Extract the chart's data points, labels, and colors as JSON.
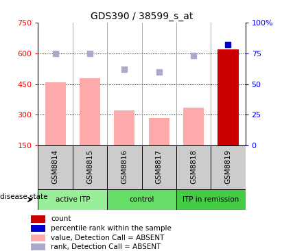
{
  "title": "GDS390 / 38599_s_at",
  "samples": [
    "GSM8814",
    "GSM8815",
    "GSM8816",
    "GSM8817",
    "GSM8818",
    "GSM8819"
  ],
  "bar_values": [
    460,
    480,
    320,
    285,
    335,
    620
  ],
  "rank_values": [
    75,
    75,
    62,
    60,
    73,
    82
  ],
  "bar_colors": [
    "#ffaaaa",
    "#ffaaaa",
    "#ffaaaa",
    "#ffaaaa",
    "#ffaaaa",
    "#cc0000"
  ],
  "rank_colors": [
    "#aaaacc",
    "#aaaacc",
    "#aaaacc",
    "#aaaacc",
    "#aaaacc",
    "#0000cc"
  ],
  "ylim_left": [
    150,
    750
  ],
  "ylim_right": [
    0,
    100
  ],
  "yticks_left": [
    150,
    300,
    450,
    600,
    750
  ],
  "yticks_right": [
    0,
    25,
    50,
    75,
    100
  ],
  "yticklabels_right": [
    "0",
    "25",
    "50",
    "75",
    "100%"
  ],
  "groups": [
    {
      "label": "active ITP",
      "indices": [
        0,
        1
      ],
      "color": "#99ee99"
    },
    {
      "label": "control",
      "indices": [
        2,
        3
      ],
      "color": "#66dd66"
    },
    {
      "label": "ITP in remission",
      "indices": [
        4,
        5
      ],
      "color": "#44cc44"
    }
  ],
  "disease_state_label": "disease state",
  "legend_colors": [
    "#cc0000",
    "#0000cc",
    "#ffaaaa",
    "#aaaacc"
  ],
  "legend_labels": [
    "count",
    "percentile rank within the sample",
    "value, Detection Call = ABSENT",
    "rank, Detection Call = ABSENT"
  ],
  "grid_color": "#000000",
  "sample_box_color": "#cccccc",
  "bar_width": 0.6
}
